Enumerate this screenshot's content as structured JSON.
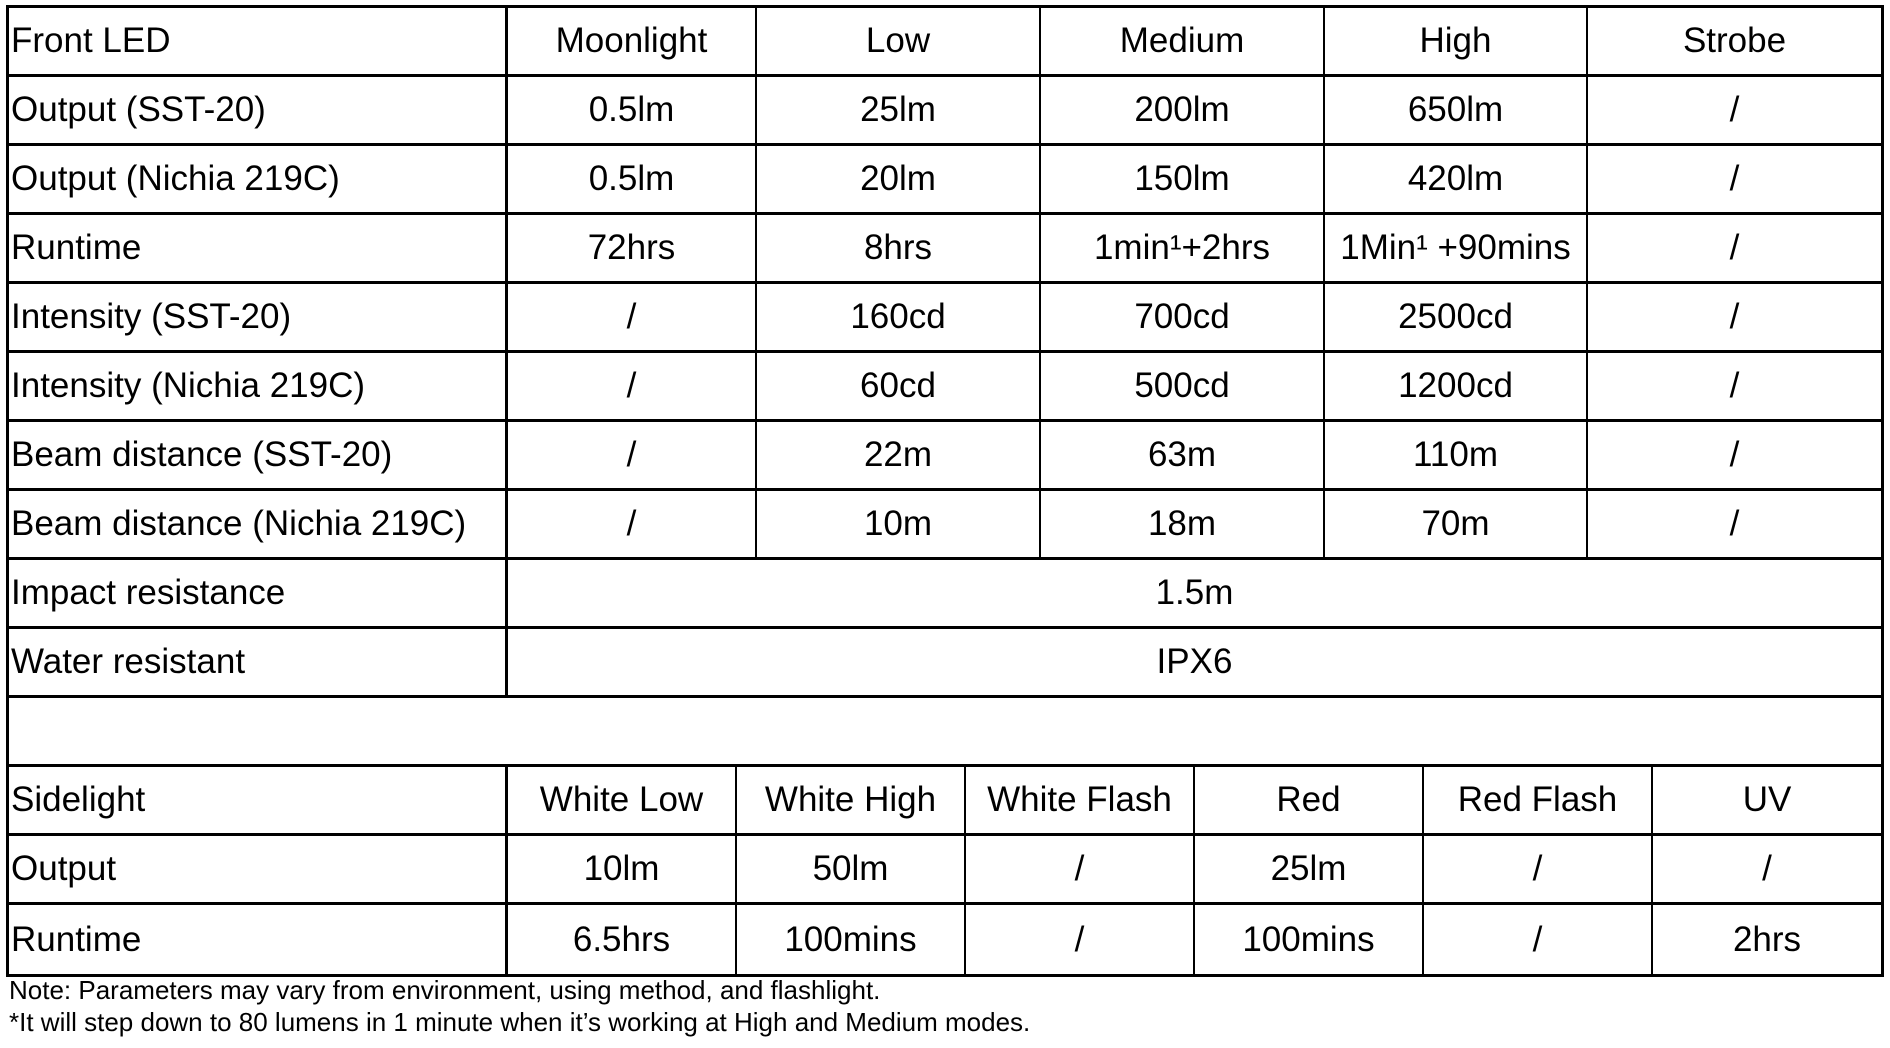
{
  "front": {
    "header": [
      "Front LED",
      "Moonlight",
      "Low",
      "Medium",
      "High",
      "Strobe"
    ],
    "rows": [
      [
        "Output (SST-20)",
        "0.5lm",
        "25lm",
        "200lm",
        "650lm",
        "/"
      ],
      [
        "Output (Nichia 219C)",
        "0.5lm",
        "20lm",
        "150lm",
        "420lm",
        "/"
      ],
      [
        "Runtime",
        "72hrs",
        "8hrs",
        "1min¹+2hrs",
        "1Min¹ +90mins",
        "/"
      ],
      [
        "Intensity (SST-20)",
        "/",
        "160cd",
        "700cd",
        "2500cd",
        "/"
      ],
      [
        "Intensity (Nichia 219C)",
        "/",
        "60cd",
        "500cd",
        "1200cd",
        "/"
      ],
      [
        "Beam distance (SST-20)",
        "/",
        "22m",
        "63m",
        "110m",
        "/"
      ],
      [
        "Beam distance (Nichia 219C)",
        "/",
        "10m",
        "18m",
        "70m",
        "/"
      ]
    ],
    "span_rows": [
      [
        "Impact resistance",
        "1.5m"
      ],
      [
        "Water resistant",
        "IPX6"
      ]
    ]
  },
  "side": {
    "header": [
      "Sidelight",
      "White Low",
      "White High",
      "White Flash",
      "Red",
      "Red Flash",
      "UV"
    ],
    "rows": [
      [
        "Output",
        "10lm",
        "50lm",
        "/",
        "25lm",
        "/",
        "/"
      ],
      [
        "Runtime",
        "6.5hrs",
        "100mins",
        "/",
        "100mins",
        "/",
        "2hrs"
      ]
    ]
  },
  "notes": [
    "Note: Parameters may vary from environment, using method, and flashlight.",
    "*It will step down to 80 lumens in 1 minute when it’s working at High and Medium modes."
  ]
}
